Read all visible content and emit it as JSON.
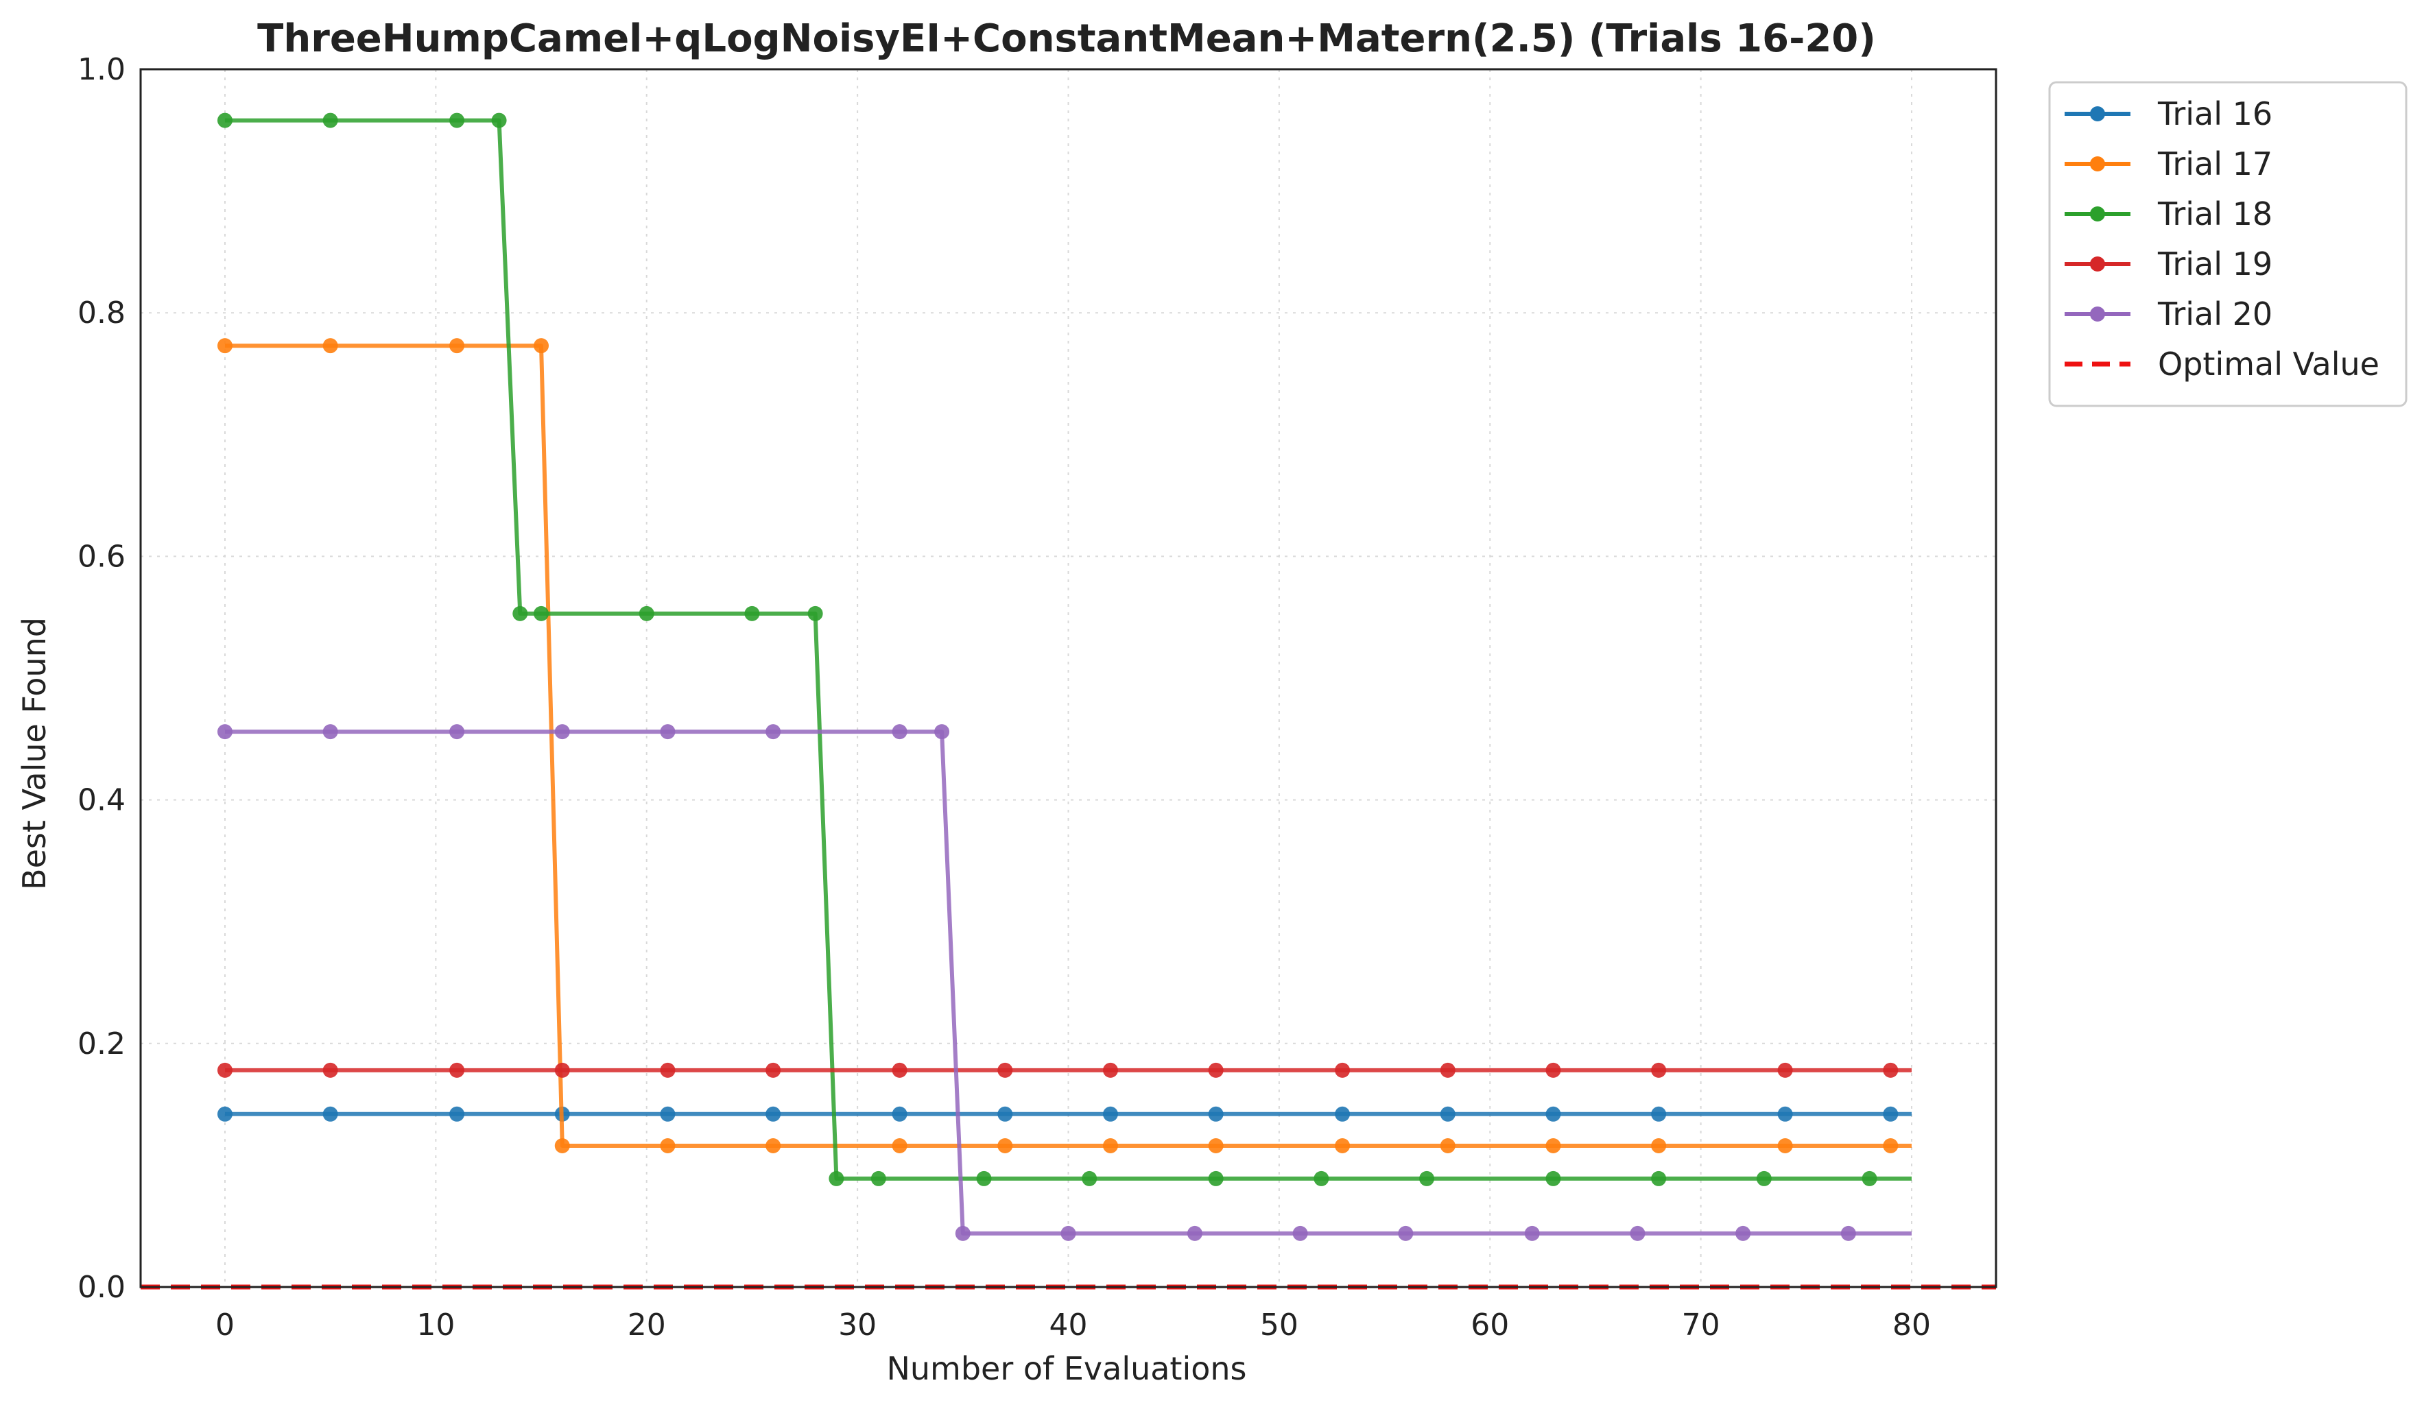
{
  "chart_data": {
    "type": "line",
    "title": "ThreeHumpCamel+qLogNoisyEI+ConstantMean+Matern(2.5) (Trials 16-20)",
    "xlabel": "Number of Evaluations",
    "ylabel": "Best Value Found",
    "xlim": [
      -4,
      84
    ],
    "ylim": [
      0,
      1.0
    ],
    "xticks": [
      0,
      10,
      20,
      30,
      40,
      50,
      60,
      70,
      80
    ],
    "xtick_labels": [
      "0",
      "10",
      "20",
      "30",
      "40",
      "50",
      "60",
      "70",
      "80"
    ],
    "yticks": [
      0.0,
      0.2,
      0.4,
      0.6,
      0.8,
      1.0
    ],
    "ytick_labels": [
      "0.0",
      "0.2",
      "0.4",
      "0.6",
      "0.8",
      "1.0"
    ],
    "grid": true,
    "legend_position": "outside-top-right",
    "series": [
      {
        "name": "Trial 16",
        "color": "#1f77b4",
        "x": [
          0,
          80
        ],
        "y": [
          0.142,
          0.142
        ],
        "marker_x": [
          0,
          5,
          11,
          16,
          21,
          26,
          32,
          37,
          42,
          47,
          53,
          58,
          63,
          68,
          74,
          79
        ]
      },
      {
        "name": "Trial 17",
        "color": "#ff7f0e",
        "x": [
          0,
          15,
          16,
          80
        ],
        "y": [
          0.773,
          0.773,
          0.116,
          0.116
        ],
        "marker_x": [
          0,
          5,
          11,
          15,
          16,
          21,
          26,
          32,
          37,
          42,
          47,
          53,
          58,
          63,
          68,
          74,
          79
        ]
      },
      {
        "name": "Trial 18",
        "color": "#2ca02c",
        "x": [
          0,
          13,
          14,
          28,
          29,
          80
        ],
        "y": [
          0.958,
          0.958,
          0.553,
          0.553,
          0.089,
          0.089
        ],
        "marker_x": [
          0,
          5,
          11,
          13,
          14,
          15,
          20,
          25,
          28,
          29,
          31,
          36,
          41,
          47,
          52,
          57,
          63,
          68,
          73,
          78
        ]
      },
      {
        "name": "Trial 19",
        "color": "#d62728",
        "x": [
          0,
          80
        ],
        "y": [
          0.178,
          0.178
        ],
        "marker_x": [
          0,
          5,
          11,
          16,
          21,
          26,
          32,
          37,
          42,
          47,
          53,
          58,
          63,
          68,
          74,
          79
        ]
      },
      {
        "name": "Trial 20",
        "color": "#9467bd",
        "x": [
          0,
          34,
          35,
          80
        ],
        "y": [
          0.456,
          0.456,
          0.044,
          0.044
        ],
        "marker_x": [
          0,
          5,
          11,
          16,
          21,
          26,
          32,
          34,
          35,
          40,
          46,
          51,
          56,
          62,
          67,
          72,
          77
        ]
      },
      {
        "name": "Optimal Value",
        "color": "#ee1111",
        "dashed": true,
        "y_constant": 0.0
      }
    ]
  }
}
